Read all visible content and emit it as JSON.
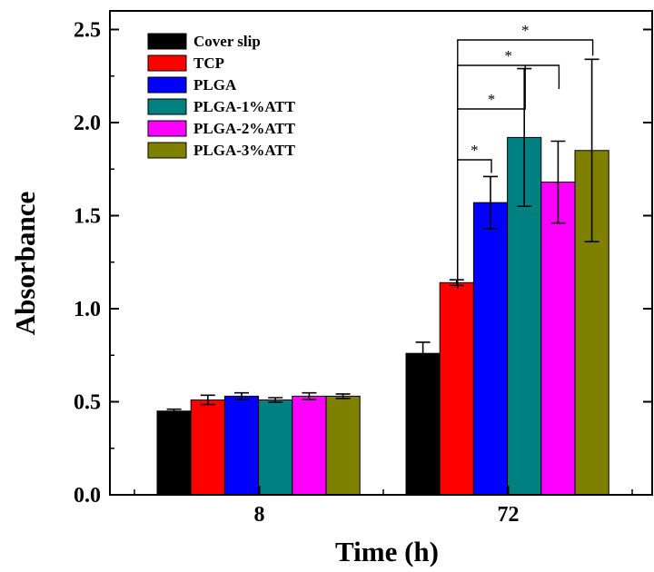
{
  "chart_data": {
    "type": "bar",
    "title": "",
    "xlabel": "Time (h)",
    "ylabel": "Absorbance",
    "ylim": [
      0,
      2.6
    ],
    "yticks": [
      0.0,
      0.5,
      1.0,
      1.5,
      2.0,
      2.5
    ],
    "ytick_labels": [
      "0.0",
      "0.5",
      "1.0",
      "1.5",
      "2.0",
      "2.5"
    ],
    "categories": [
      "8",
      "72"
    ],
    "legend_position": "top-left",
    "series": [
      {
        "name": "Cover slip",
        "color": "#000000",
        "values": [
          0.45,
          0.76
        ],
        "errors": [
          0.01,
          0.06
        ]
      },
      {
        "name": "TCP",
        "color": "#ff0000",
        "values": [
          0.51,
          1.14
        ],
        "errors": [
          0.025,
          0.015
        ]
      },
      {
        "name": "PLGA",
        "color": "#0000ff",
        "values": [
          0.53,
          1.57
        ],
        "errors": [
          0.018,
          0.14
        ]
      },
      {
        "name": "PLGA-1%ATT",
        "color": "#008080",
        "values": [
          0.51,
          1.92
        ],
        "errors": [
          0.012,
          0.37
        ]
      },
      {
        "name": "PLGA-2%ATT",
        "color": "#ff00ff",
        "values": [
          0.53,
          1.68
        ],
        "errors": [
          0.018,
          0.22
        ]
      },
      {
        "name": "PLGA-3%ATT",
        "color": "#808000",
        "values": [
          0.53,
          1.85
        ],
        "errors": [
          0.012,
          0.49
        ]
      }
    ],
    "significance": [
      {
        "group": "72",
        "from": "TCP",
        "to": "PLGA",
        "label": "*"
      },
      {
        "group": "72",
        "from": "TCP",
        "to": "PLGA-1%ATT",
        "label": "*"
      },
      {
        "group": "72",
        "from": "TCP",
        "to": "PLGA-2%ATT",
        "label": "*"
      },
      {
        "group": "72",
        "from": "TCP",
        "to": "PLGA-3%ATT",
        "label": "*"
      }
    ]
  }
}
